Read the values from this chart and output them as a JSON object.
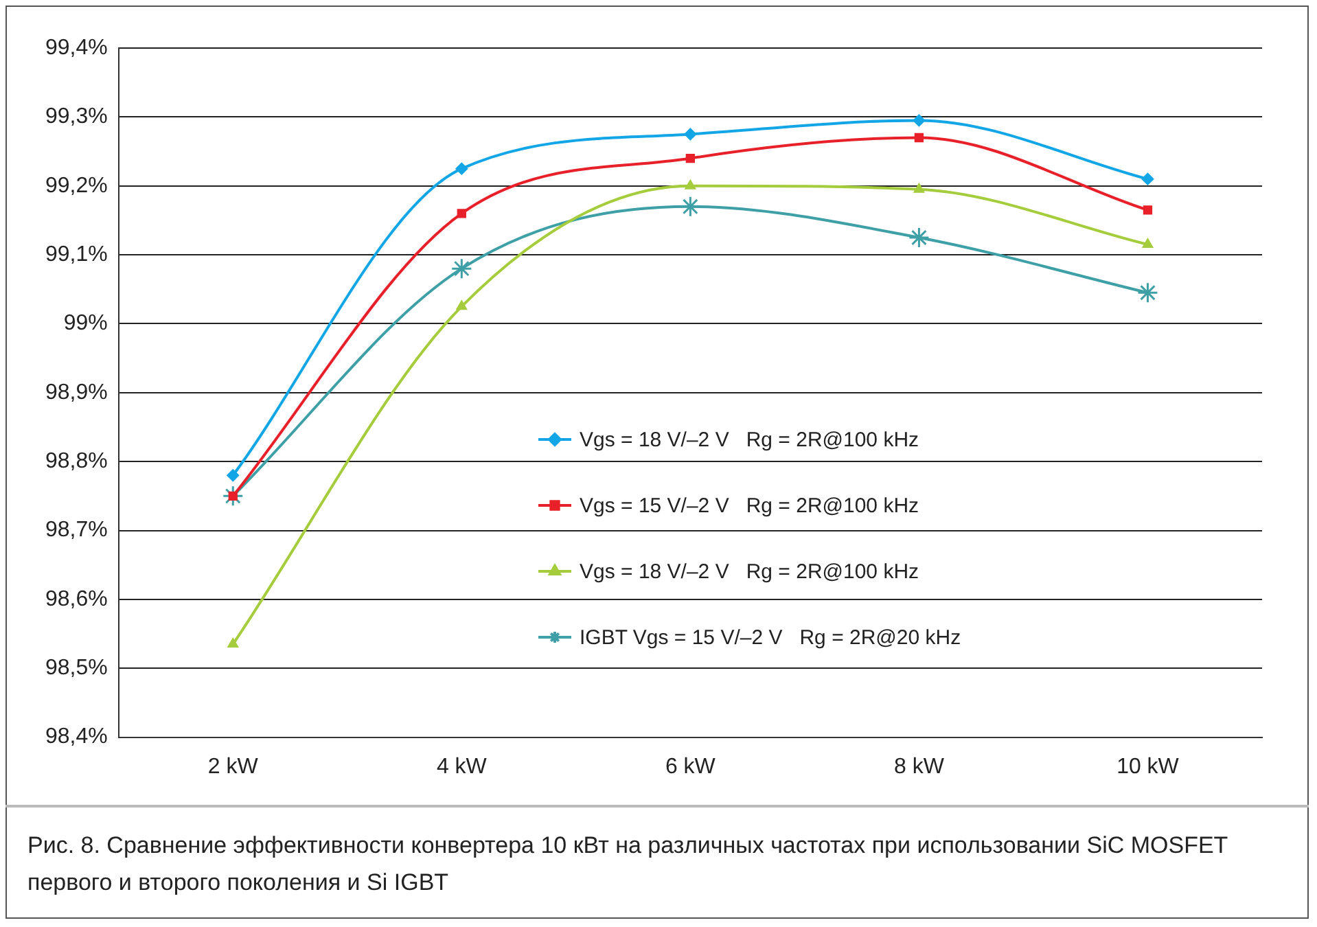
{
  "chart_data": {
    "type": "line",
    "categories": [
      "2 kW",
      "4 kW",
      "6 kW",
      "8 kW",
      "10 kW"
    ],
    "series": [
      {
        "name": "Vgs = 18 V/–2 V   Rg = 2R@100 kHz",
        "color": "#13a6e6",
        "marker": "diamond",
        "values": [
          98.78,
          99.225,
          99.275,
          99.295,
          99.21
        ]
      },
      {
        "name": "Vgs = 15 V/–2 V   Rg = 2R@100 kHz",
        "color": "#e8202a",
        "marker": "square",
        "values": [
          98.75,
          99.16,
          99.24,
          99.27,
          99.165
        ]
      },
      {
        "name": "Vgs = 18 V/–2 V   Rg = 2R@100 kHz",
        "color": "#a5cc3c",
        "marker": "triangle",
        "values": [
          98.535,
          99.025,
          99.2,
          99.195,
          99.115
        ]
      },
      {
        "name": "IGBT Vgs = 15 V/–2 V   Rg = 2R@20 kHz",
        "color": "#3ea0a6",
        "marker": "cross",
        "values": [
          98.75,
          99.08,
          99.17,
          99.125,
          99.045
        ]
      }
    ],
    "ylim": [
      98.4,
      99.4
    ],
    "yticks": [
      {
        "value": 98.4,
        "label": "98,4%"
      },
      {
        "value": 98.5,
        "label": "98,5%"
      },
      {
        "value": 98.6,
        "label": "98,6%"
      },
      {
        "value": 98.7,
        "label": "98,7%"
      },
      {
        "value": 98.8,
        "label": "98,8%"
      },
      {
        "value": 98.9,
        "label": "98,9%"
      },
      {
        "value": 99,
        "label": "99%"
      },
      {
        "value": 99.1,
        "label": "99,1%"
      },
      {
        "value": 99.2,
        "label": "99,2%"
      },
      {
        "value": 99.3,
        "label": "99,3%"
      },
      {
        "value": 99.4,
        "label": "99,4%"
      }
    ],
    "grid": "y",
    "legend": "right",
    "line_style": "solid",
    "annotations": [
      "Рис. 8. Сравнение эффективности конвертера 10 кВт на различных частотах при использовании SiC MOSFET первого и второго поколения и Si IGBT"
    ]
  }
}
